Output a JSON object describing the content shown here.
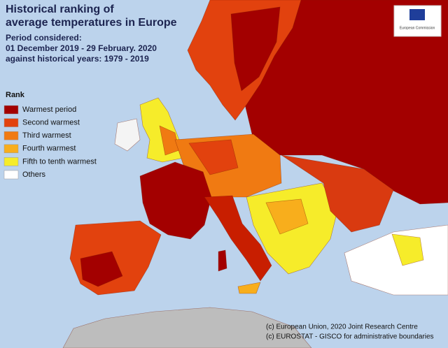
{
  "header": {
    "title_lines": [
      "Historical ranking of",
      "average temperatures in Europe"
    ],
    "period_lines": [
      "Period considered:",
      "01 December 2019 - 29 February. 2020",
      "against historical years: 1979 - 2019"
    ]
  },
  "legend": {
    "title": "Rank",
    "items": [
      {
        "label": "Warmest period",
        "color": "#a30000"
      },
      {
        "label": "Second warmest",
        "color": "#e2420e"
      },
      {
        "label": "Third warmest",
        "color": "#f07a12"
      },
      {
        "label": "Fourth warmest",
        "color": "#f8ae1c"
      },
      {
        "label": "Fifth to tenth warmest",
        "color": "#f6ec2a"
      },
      {
        "label": "Others",
        "color": "#ffffff"
      }
    ]
  },
  "logo": {
    "text": "European Commission"
  },
  "credits": [
    "(c) European Union, 2020 Joint Research Centre",
    "(c) EUROSTAT - GISCO for administrative boundaries"
  ]
}
